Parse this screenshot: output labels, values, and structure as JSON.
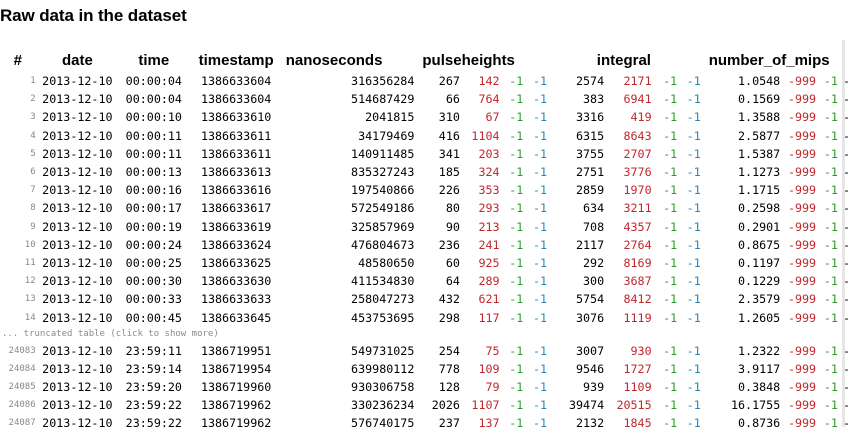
{
  "title": "Raw data in the dataset",
  "headers": {
    "index": "#",
    "date": "date",
    "time": "time",
    "timestamp": "timestamp",
    "nanoseconds": "nanoseconds",
    "pulseheights": "pulseheights",
    "integral": "integral",
    "number_of_mips": "number_of_mips"
  },
  "truncated_label": "... truncated table (click to show more)",
  "rows_top": [
    {
      "i": "1",
      "date": "2013-12-10",
      "time": "00:00:04",
      "ts": "1386633604",
      "ns": "316356284",
      "ph": [
        "267",
        "142",
        "-1",
        "-1"
      ],
      "ig": [
        "2574",
        "2171",
        "-1",
        "-1"
      ],
      "mips": [
        "1.0548",
        "-999",
        "-1",
        "-"
      ]
    },
    {
      "i": "2",
      "date": "2013-12-10",
      "time": "00:00:04",
      "ts": "1386633604",
      "ns": "514687429",
      "ph": [
        "66",
        "764",
        "-1",
        "-1"
      ],
      "ig": [
        "383",
        "6941",
        "-1",
        "-1"
      ],
      "mips": [
        "0.1569",
        "-999",
        "-1",
        "-"
      ]
    },
    {
      "i": "3",
      "date": "2013-12-10",
      "time": "00:00:10",
      "ts": "1386633610",
      "ns": "2041815",
      "ph": [
        "310",
        "67",
        "-1",
        "-1"
      ],
      "ig": [
        "3316",
        "419",
        "-1",
        "-1"
      ],
      "mips": [
        "1.3588",
        "-999",
        "-1",
        "-"
      ]
    },
    {
      "i": "4",
      "date": "2013-12-10",
      "time": "00:00:11",
      "ts": "1386633611",
      "ns": "34179469",
      "ph": [
        "416",
        "1104",
        "-1",
        "-1"
      ],
      "ig": [
        "6315",
        "8643",
        "-1",
        "-1"
      ],
      "mips": [
        "2.5877",
        "-999",
        "-1",
        "-"
      ]
    },
    {
      "i": "5",
      "date": "2013-12-10",
      "time": "00:00:11",
      "ts": "1386633611",
      "ns": "140911485",
      "ph": [
        "341",
        "203",
        "-1",
        "-1"
      ],
      "ig": [
        "3755",
        "2707",
        "-1",
        "-1"
      ],
      "mips": [
        "1.5387",
        "-999",
        "-1",
        "-"
      ]
    },
    {
      "i": "6",
      "date": "2013-12-10",
      "time": "00:00:13",
      "ts": "1386633613",
      "ns": "835327243",
      "ph": [
        "185",
        "324",
        "-1",
        "-1"
      ],
      "ig": [
        "2751",
        "3776",
        "-1",
        "-1"
      ],
      "mips": [
        "1.1273",
        "-999",
        "-1",
        "-"
      ]
    },
    {
      "i": "7",
      "date": "2013-12-10",
      "time": "00:00:16",
      "ts": "1386633616",
      "ns": "197540866",
      "ph": [
        "226",
        "353",
        "-1",
        "-1"
      ],
      "ig": [
        "2859",
        "1970",
        "-1",
        "-1"
      ],
      "mips": [
        "1.1715",
        "-999",
        "-1",
        "-"
      ]
    },
    {
      "i": "8",
      "date": "2013-12-10",
      "time": "00:00:17",
      "ts": "1386633617",
      "ns": "572549186",
      "ph": [
        "80",
        "293",
        "-1",
        "-1"
      ],
      "ig": [
        "634",
        "3211",
        "-1",
        "-1"
      ],
      "mips": [
        "0.2598",
        "-999",
        "-1",
        "-"
      ]
    },
    {
      "i": "9",
      "date": "2013-12-10",
      "time": "00:00:19",
      "ts": "1386633619",
      "ns": "325857969",
      "ph": [
        "90",
        "213",
        "-1",
        "-1"
      ],
      "ig": [
        "708",
        "4357",
        "-1",
        "-1"
      ],
      "mips": [
        "0.2901",
        "-999",
        "-1",
        "-"
      ]
    },
    {
      "i": "10",
      "date": "2013-12-10",
      "time": "00:00:24",
      "ts": "1386633624",
      "ns": "476804673",
      "ph": [
        "236",
        "241",
        "-1",
        "-1"
      ],
      "ig": [
        "2117",
        "2764",
        "-1",
        "-1"
      ],
      "mips": [
        "0.8675",
        "-999",
        "-1",
        "-"
      ]
    },
    {
      "i": "11",
      "date": "2013-12-10",
      "time": "00:00:25",
      "ts": "1386633625",
      "ns": "48580650",
      "ph": [
        "60",
        "925",
        "-1",
        "-1"
      ],
      "ig": [
        "292",
        "8169",
        "-1",
        "-1"
      ],
      "mips": [
        "0.1197",
        "-999",
        "-1",
        "-"
      ]
    },
    {
      "i": "12",
      "date": "2013-12-10",
      "time": "00:00:30",
      "ts": "1386633630",
      "ns": "411534830",
      "ph": [
        "64",
        "289",
        "-1",
        "-1"
      ],
      "ig": [
        "300",
        "3687",
        "-1",
        "-1"
      ],
      "mips": [
        "0.1229",
        "-999",
        "-1",
        "-"
      ]
    },
    {
      "i": "13",
      "date": "2013-12-10",
      "time": "00:00:33",
      "ts": "1386633633",
      "ns": "258047273",
      "ph": [
        "432",
        "621",
        "-1",
        "-1"
      ],
      "ig": [
        "5754",
        "8412",
        "-1",
        "-1"
      ],
      "mips": [
        "2.3579",
        "-999",
        "-1",
        "-"
      ]
    },
    {
      "i": "14",
      "date": "2013-12-10",
      "time": "00:00:45",
      "ts": "1386633645",
      "ns": "453753695",
      "ph": [
        "298",
        "117",
        "-1",
        "-1"
      ],
      "ig": [
        "3076",
        "1119",
        "-1",
        "-1"
      ],
      "mips": [
        "1.2605",
        "-999",
        "-1",
        "-"
      ]
    }
  ],
  "rows_bottom": [
    {
      "i": "24083",
      "date": "2013-12-10",
      "time": "23:59:11",
      "ts": "1386719951",
      "ns": "549731025",
      "ph": [
        "254",
        "75",
        "-1",
        "-1"
      ],
      "ig": [
        "3007",
        "930",
        "-1",
        "-1"
      ],
      "mips": [
        "1.2322",
        "-999",
        "-1",
        "-"
      ]
    },
    {
      "i": "24084",
      "date": "2013-12-10",
      "time": "23:59:14",
      "ts": "1386719954",
      "ns": "639980112",
      "ph": [
        "778",
        "109",
        "-1",
        "-1"
      ],
      "ig": [
        "9546",
        "1727",
        "-1",
        "-1"
      ],
      "mips": [
        "3.9117",
        "-999",
        "-1",
        "-"
      ]
    },
    {
      "i": "24085",
      "date": "2013-12-10",
      "time": "23:59:20",
      "ts": "1386719960",
      "ns": "930306758",
      "ph": [
        "128",
        "79",
        "-1",
        "-1"
      ],
      "ig": [
        "939",
        "1109",
        "-1",
        "-1"
      ],
      "mips": [
        "0.3848",
        "-999",
        "-1",
        "-"
      ]
    },
    {
      "i": "24086",
      "date": "2013-12-10",
      "time": "23:59:22",
      "ts": "1386719962",
      "ns": "330236234",
      "ph": [
        "2026",
        "1107",
        "-1",
        "-1"
      ],
      "ig": [
        "39474",
        "20515",
        "-1",
        "-1"
      ],
      "mips": [
        "16.1755",
        "-999",
        "-1",
        "-"
      ]
    },
    {
      "i": "24087",
      "date": "2013-12-10",
      "time": "23:59:22",
      "ts": "1386719962",
      "ns": "576740175",
      "ph": [
        "237",
        "137",
        "-1",
        "-1"
      ],
      "ig": [
        "2132",
        "1845",
        "-1",
        "-1"
      ],
      "mips": [
        "0.8736",
        "-999",
        "-1",
        "-"
      ]
    }
  ],
  "colors": {
    "red": "#c0272d",
    "green": "#2a9e2a",
    "blue": "#2a86b8",
    "index": "#888888"
  }
}
